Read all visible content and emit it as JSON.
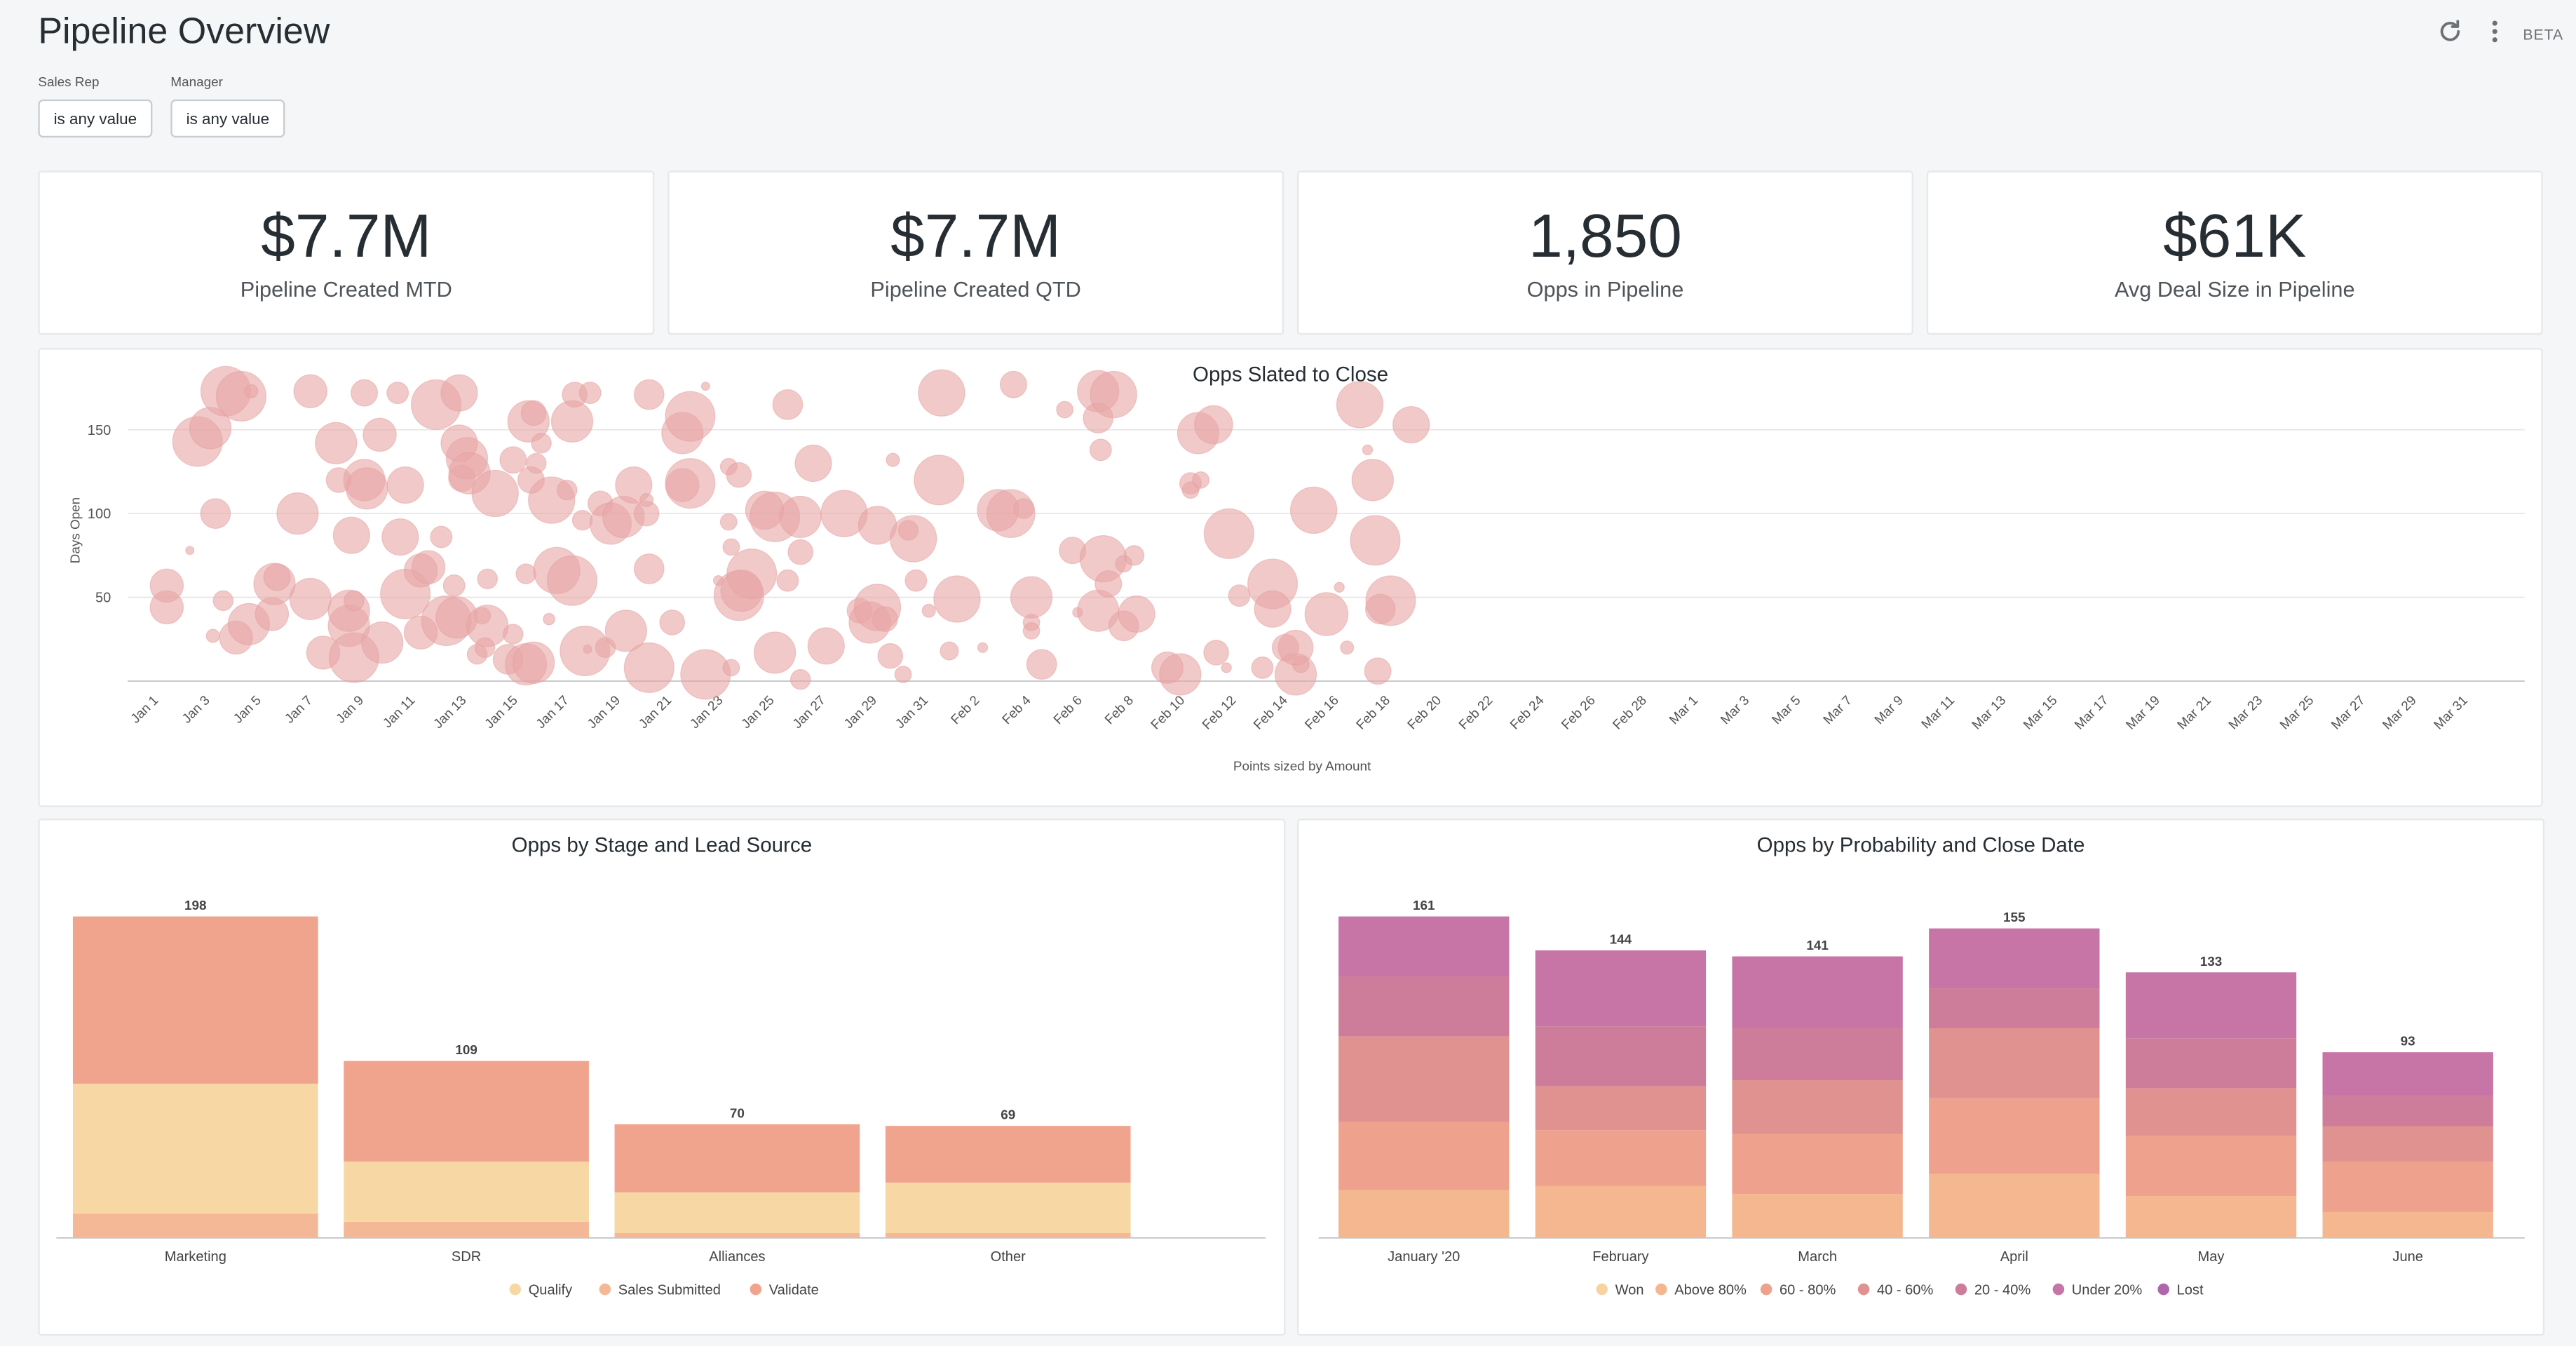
{
  "page": {
    "title": "Pipeline Overview",
    "beta": "BETA"
  },
  "filters": [
    {
      "label": "Sales Rep",
      "value": "is any value"
    },
    {
      "label": "Manager",
      "value": "is any value"
    }
  ],
  "kpis": [
    {
      "value": "$7.7M",
      "label": "Pipeline Created MTD"
    },
    {
      "value": "$7.7M",
      "label": "Pipeline Created QTD"
    },
    {
      "value": "1,850",
      "label": "Opps in Pipeline"
    },
    {
      "value": "$61K",
      "label": "Avg Deal Size in Pipeline"
    }
  ],
  "icons": {
    "refresh": "refresh-icon",
    "menu": "more-vertical-icon"
  },
  "chart_data": [
    {
      "type": "scatter",
      "title": "Opps Slated to Close",
      "ylabel": "Days Open",
      "xlabel": "Points sized by Amount",
      "yticks": [
        50,
        100,
        150
      ],
      "ylim": [
        0,
        180
      ],
      "color": "#e8a5a5",
      "x_ticks": [
        "Jan 1",
        "Jan 3",
        "Jan 5",
        "Jan 7",
        "Jan 9",
        "Jan 11",
        "Jan 13",
        "Jan 15",
        "Jan 17",
        "Jan 19",
        "Jan 21",
        "Jan 23",
        "Jan 25",
        "Jan 27",
        "Jan 29",
        "Jan 31",
        "Feb 2",
        "Feb 4",
        "Feb 6",
        "Feb 8",
        "Feb 10",
        "Feb 12",
        "Feb 14",
        "Feb 16",
        "Feb 18",
        "Feb 20",
        "Feb 22",
        "Feb 24",
        "Feb 26",
        "Feb 28",
        "Mar 1",
        "Mar 3",
        "Mar 5",
        "Mar 7",
        "Mar 9",
        "Mar 11",
        "Mar 13",
        "Mar 15",
        "Mar 17",
        "Mar 19",
        "Mar 21",
        "Mar 23",
        "Mar 25",
        "Mar 27",
        "Mar 29",
        "Mar 31"
      ],
      "points": [
        {
          "day": 0.3,
          "y": 57,
          "r": 2
        },
        {
          "day": 0.3,
          "y": 44,
          "r": 2
        },
        {
          "day": 1.2,
          "y": 78,
          "r": 0.5
        },
        {
          "day": 1.5,
          "y": 143,
          "r": 3
        },
        {
          "day": 2.0,
          "y": 151,
          "r": 2.5
        },
        {
          "day": 2.2,
          "y": 100,
          "r": 1.8
        },
        {
          "day": 2.1,
          "y": 27,
          "r": 0.8
        },
        {
          "day": 2.5,
          "y": 48,
          "r": 1.2
        },
        {
          "day": 2.6,
          "y": 173,
          "r": 3
        },
        {
          "day": 3.0,
          "y": 26,
          "r": 2
        },
        {
          "day": 3.2,
          "y": 170,
          "r": 3
        },
        {
          "day": 3.5,
          "y": 34,
          "r": 2.5
        },
        {
          "day": 3.6,
          "y": 173,
          "r": 0.8
        },
        {
          "day": 4.4,
          "y": 40,
          "r": 2
        },
        {
          "day": 4.5,
          "y": 58,
          "r": 2.5
        },
        {
          "day": 4.6,
          "y": 62,
          "r": 1.6
        },
        {
          "day": 5.4,
          "y": 100,
          "r": 2.5
        },
        {
          "day": 5.9,
          "y": 49,
          "r": 2.5
        },
        {
          "day": 5.9,
          "y": 173,
          "r": 2
        },
        {
          "day": 6.4,
          "y": 17,
          "r": 2
        },
        {
          "day": 6.9,
          "y": 142,
          "r": 2.5
        },
        {
          "day": 7.0,
          "y": 120,
          "r": 1.5
        },
        {
          "day": 7.4,
          "y": 33,
          "r": 2.5
        },
        {
          "day": 7.4,
          "y": 42,
          "r": 2.5
        },
        {
          "day": 7.5,
          "y": 87,
          "r": 2.2
        },
        {
          "day": 7.6,
          "y": 14,
          "r": 3
        },
        {
          "day": 7.6,
          "y": 48,
          "r": 1.2
        },
        {
          "day": 8.0,
          "y": 120,
          "r": 2.5
        },
        {
          "day": 8.0,
          "y": 172,
          "r": 1.6
        },
        {
          "day": 8.1,
          "y": 115,
          "r": 2.5
        },
        {
          "day": 8.6,
          "y": 147,
          "r": 2
        },
        {
          "day": 8.7,
          "y": 23,
          "r": 2.5
        },
        {
          "day": 9.3,
          "y": 172,
          "r": 1.3
        },
        {
          "day": 9.4,
          "y": 86,
          "r": 2.2
        },
        {
          "day": 9.6,
          "y": 117,
          "r": 2.2
        },
        {
          "day": 9.6,
          "y": 52,
          "r": 3
        },
        {
          "day": 10.2,
          "y": 29,
          "r": 2
        },
        {
          "day": 10.2,
          "y": 66,
          "r": 2
        },
        {
          "day": 10.5,
          "y": 68,
          "r": 2
        },
        {
          "day": 10.8,
          "y": 165,
          "r": 3
        },
        {
          "day": 11.0,
          "y": 86,
          "r": 1.3
        },
        {
          "day": 11.2,
          "y": 36,
          "r": 3
        },
        {
          "day": 11.5,
          "y": 57,
          "r": 1.3
        },
        {
          "day": 11.6,
          "y": 38,
          "r": 2.5
        },
        {
          "day": 11.7,
          "y": 142,
          "r": 2.2
        },
        {
          "day": 11.7,
          "y": 172,
          "r": 2.2
        },
        {
          "day": 11.8,
          "y": 121,
          "r": 1.6
        },
        {
          "day": 12.0,
          "y": 133,
          "r": 2.5
        },
        {
          "day": 12.1,
          "y": 124,
          "r": 2.5
        },
        {
          "day": 12.4,
          "y": 16,
          "r": 1.2
        },
        {
          "day": 12.6,
          "y": 39,
          "r": 1
        },
        {
          "day": 12.7,
          "y": 20,
          "r": 1.2
        },
        {
          "day": 12.8,
          "y": 33,
          "r": 2.5
        },
        {
          "day": 12.8,
          "y": 61,
          "r": 1.2
        },
        {
          "day": 13.1,
          "y": 112,
          "r": 2.8
        },
        {
          "day": 13.6,
          "y": 13,
          "r": 1.8
        },
        {
          "day": 13.8,
          "y": 28,
          "r": 1.2
        },
        {
          "day": 13.8,
          "y": 132,
          "r": 1.6
        },
        {
          "day": 14.3,
          "y": 10,
          "r": 2.5
        },
        {
          "day": 14.3,
          "y": 64,
          "r": 1.2
        },
        {
          "day": 14.4,
          "y": 155,
          "r": 2.5
        },
        {
          "day": 14.5,
          "y": 120,
          "r": 1.6
        },
        {
          "day": 14.6,
          "y": 11,
          "r": 2.5
        },
        {
          "day": 14.6,
          "y": 160,
          "r": 1.5
        },
        {
          "day": 14.7,
          "y": 130,
          "r": 1.2
        },
        {
          "day": 14.9,
          "y": 142,
          "r": 1.2
        },
        {
          "day": 15.2,
          "y": 37,
          "r": 0.7
        },
        {
          "day": 15.3,
          "y": 108,
          "r": 2.8
        },
        {
          "day": 15.5,
          "y": 66,
          "r": 2.8
        },
        {
          "day": 15.9,
          "y": 114,
          "r": 1.2
        },
        {
          "day": 16.1,
          "y": 155,
          "r": 2.5
        },
        {
          "day": 16.1,
          "y": 60,
          "r": 3
        },
        {
          "day": 16.2,
          "y": 171,
          "r": 1.5
        },
        {
          "day": 16.5,
          "y": 96,
          "r": 1.2
        },
        {
          "day": 16.6,
          "y": 18,
          "r": 3
        },
        {
          "day": 16.7,
          "y": 19,
          "r": 0.5
        },
        {
          "day": 16.8,
          "y": 172,
          "r": 1.3
        },
        {
          "day": 17.2,
          "y": 106,
          "r": 1.5
        },
        {
          "day": 17.4,
          "y": 20,
          "r": 1.2
        },
        {
          "day": 17.6,
          "y": 94,
          "r": 2.5
        },
        {
          "day": 18.1,
          "y": 98,
          "r": 2.5
        },
        {
          "day": 18.2,
          "y": 30,
          "r": 2.5
        },
        {
          "day": 18.5,
          "y": 117,
          "r": 2.2
        },
        {
          "day": 19.0,
          "y": 100,
          "r": 1.5
        },
        {
          "day": 19.0,
          "y": 108,
          "r": 0.8
        },
        {
          "day": 19.1,
          "y": 67,
          "r": 1.8
        },
        {
          "day": 19.1,
          "y": 171,
          "r": 1.8
        },
        {
          "day": 19.1,
          "y": 8,
          "r": 3
        },
        {
          "day": 20.0,
          "y": 35,
          "r": 1.5
        },
        {
          "day": 20.4,
          "y": 148,
          "r": 2.5
        },
        {
          "day": 20.4,
          "y": 117,
          "r": 2
        },
        {
          "day": 20.7,
          "y": 118,
          "r": 3
        },
        {
          "day": 20.7,
          "y": 158,
          "r": 3
        },
        {
          "day": 21.3,
          "y": 4,
          "r": 3
        },
        {
          "day": 21.3,
          "y": 176,
          "r": 0.5
        },
        {
          "day": 21.8,
          "y": 60,
          "r": 0.6
        },
        {
          "day": 22.2,
          "y": 128,
          "r": 1
        },
        {
          "day": 22.2,
          "y": 95,
          "r": 1
        },
        {
          "day": 22.3,
          "y": 80,
          "r": 1
        },
        {
          "day": 22.3,
          "y": 8,
          "r": 1
        },
        {
          "day": 22.6,
          "y": 123,
          "r": 1.5
        },
        {
          "day": 22.6,
          "y": 51,
          "r": 3
        },
        {
          "day": 22.7,
          "y": 54,
          "r": 2.5
        },
        {
          "day": 23.1,
          "y": 64,
          "r": 3
        },
        {
          "day": 23.6,
          "y": 102,
          "r": 2.3
        },
        {
          "day": 24.0,
          "y": 17,
          "r": 2.5
        },
        {
          "day": 24.0,
          "y": 98,
          "r": 3
        },
        {
          "day": 24.5,
          "y": 60,
          "r": 1.3
        },
        {
          "day": 24.5,
          "y": 165,
          "r": 1.8
        },
        {
          "day": 25.0,
          "y": 98,
          "r": 2.5
        },
        {
          "day": 25.0,
          "y": 77,
          "r": 1.5
        },
        {
          "day": 25.0,
          "y": 1,
          "r": 1.2
        },
        {
          "day": 25.5,
          "y": 130,
          "r": 2.2
        },
        {
          "day": 26.0,
          "y": 21,
          "r": 2.2
        },
        {
          "day": 26.7,
          "y": 100,
          "r": 2.8
        },
        {
          "day": 27.3,
          "y": 42,
          "r": 1.5
        },
        {
          "day": 27.7,
          "y": 35,
          "r": 2.5
        },
        {
          "day": 28.0,
          "y": 44,
          "r": 2.8
        },
        {
          "day": 28.0,
          "y": 93,
          "r": 2.3
        },
        {
          "day": 28.3,
          "y": 37,
          "r": 1.5
        },
        {
          "day": 28.5,
          "y": 15,
          "r": 1.5
        },
        {
          "day": 28.6,
          "y": 132,
          "r": 0.8
        },
        {
          "day": 29.0,
          "y": 4,
          "r": 1
        },
        {
          "day": 29.2,
          "y": 90,
          "r": 1.2
        },
        {
          "day": 29.4,
          "y": 85,
          "r": 2.8
        },
        {
          "day": 29.5,
          "y": 60,
          "r": 1.3
        },
        {
          "day": 30.0,
          "y": 42,
          "r": 0.8
        },
        {
          "day": 30.4,
          "y": 120,
          "r": 3
        },
        {
          "day": 30.5,
          "y": 172,
          "r": 2.8
        },
        {
          "day": 30.8,
          "y": 18,
          "r": 1.1
        },
        {
          "day": 31.1,
          "y": 49,
          "r": 2.8
        },
        {
          "day": 32.1,
          "y": 20,
          "r": 0.6
        },
        {
          "day": 32.7,
          "y": 102,
          "r": 2.5
        },
        {
          "day": 33.2,
          "y": 100,
          "r": 2.9
        },
        {
          "day": 33.3,
          "y": 177,
          "r": 1.6
        },
        {
          "day": 33.7,
          "y": 103,
          "r": 1.2
        },
        {
          "day": 34.0,
          "y": 35,
          "r": 1
        },
        {
          "day": 34.0,
          "y": 30,
          "r": 1
        },
        {
          "day": 34.0,
          "y": 50,
          "r": 2.5
        },
        {
          "day": 34.4,
          "y": 10,
          "r": 1.8
        },
        {
          "day": 35.3,
          "y": 162,
          "r": 1
        },
        {
          "day": 35.6,
          "y": 78,
          "r": 1.6
        },
        {
          "day": 35.8,
          "y": 41,
          "r": 0.6
        },
        {
          "day": 36.6,
          "y": 173,
          "r": 2.5
        },
        {
          "day": 36.6,
          "y": 157,
          "r": 1.8
        },
        {
          "day": 36.7,
          "y": 138,
          "r": 1.3
        },
        {
          "day": 36.8,
          "y": 73,
          "r": 2.8
        },
        {
          "day": 36.6,
          "y": 42,
          "r": 2.5
        },
        {
          "day": 37.0,
          "y": 58,
          "r": 1.6
        },
        {
          "day": 37.2,
          "y": 171,
          "r": 2.8
        },
        {
          "day": 37.6,
          "y": 33,
          "r": 1.8
        },
        {
          "day": 37.6,
          "y": 70,
          "r": 1
        },
        {
          "day": 38.0,
          "y": 75,
          "r": 1.2
        },
        {
          "day": 38.1,
          "y": 40,
          "r": 2.2
        },
        {
          "day": 39.3,
          "y": 8,
          "r": 1.9
        },
        {
          "day": 39.8,
          "y": 4,
          "r": 2.5
        },
        {
          "day": 40.2,
          "y": 118,
          "r": 1.3
        },
        {
          "day": 40.2,
          "y": 114,
          "r": 1
        },
        {
          "day": 40.5,
          "y": 148,
          "r": 2.5
        },
        {
          "day": 40.6,
          "y": 120,
          "r": 1
        },
        {
          "day": 41.1,
          "y": 153,
          "r": 2.3
        },
        {
          "day": 41.2,
          "y": 17,
          "r": 1.5
        },
        {
          "day": 41.6,
          "y": 8,
          "r": 0.6
        },
        {
          "day": 41.7,
          "y": 88,
          "r": 3
        },
        {
          "day": 42.1,
          "y": 51,
          "r": 1.3
        },
        {
          "day": 43.0,
          "y": 8,
          "r": 1.3
        },
        {
          "day": 43.4,
          "y": 58,
          "r": 3
        },
        {
          "day": 43.4,
          "y": 43,
          "r": 2.2
        },
        {
          "day": 43.9,
          "y": 20,
          "r": 1.6
        },
        {
          "day": 44.3,
          "y": 4,
          "r": 2.5
        },
        {
          "day": 44.5,
          "y": 10,
          "r": 1
        },
        {
          "day": 44.3,
          "y": 20,
          "r": 2.1
        },
        {
          "day": 45.0,
          "y": 102,
          "r": 2.8
        },
        {
          "day": 45.5,
          "y": 40,
          "r": 2.6
        },
        {
          "day": 46.0,
          "y": 56,
          "r": 0.6
        },
        {
          "day": 46.3,
          "y": 20,
          "r": 0.8
        },
        {
          "day": 46.8,
          "y": 165,
          "r": 2.8
        },
        {
          "day": 47.1,
          "y": 138,
          "r": 0.6
        },
        {
          "day": 47.3,
          "y": 120,
          "r": 2.5
        },
        {
          "day": 47.4,
          "y": 84,
          "r": 3
        },
        {
          "day": 47.5,
          "y": 6,
          "r": 1.6
        },
        {
          "day": 47.6,
          "y": 43,
          "r": 1.8
        },
        {
          "day": 48.0,
          "y": 48,
          "r": 3
        },
        {
          "day": 48.8,
          "y": 153,
          "r": 2.2
        }
      ]
    },
    {
      "type": "bar",
      "title": "Opps by Stage and Lead Source",
      "categories": [
        "Marketing",
        "SDR",
        "Alliances",
        "Other"
      ],
      "totals": [
        198,
        109,
        70,
        69
      ],
      "series": [
        {
          "name": "Qualify",
          "color": "#f7d8a4",
          "values": [
            80,
            37,
            25,
            31
          ]
        },
        {
          "name": "Sales Submitted",
          "color": "#f4b896",
          "values": [
            15,
            10,
            3,
            3
          ]
        },
        {
          "name": "Validate",
          "color": "#f0a48e",
          "values": [
            103,
            62,
            42,
            35
          ]
        }
      ],
      "series_order_bottom_up": [
        "Sales Submitted",
        "Qualify",
        "Validate"
      ],
      "ylim": [
        0,
        198
      ]
    },
    {
      "type": "bar",
      "title": "Opps by Probability and Close Date",
      "categories": [
        "January '20",
        "February",
        "March",
        "April",
        "May",
        "June"
      ],
      "totals": [
        161,
        144,
        141,
        155,
        133,
        93
      ],
      "series": [
        {
          "name": "Won",
          "color": "#f8d3a2",
          "values": [
            0,
            0,
            0,
            0,
            0,
            0
          ]
        },
        {
          "name": "Above 80%",
          "color": "#f4b790",
          "values": [
            24,
            26,
            22,
            32,
            21,
            13
          ]
        },
        {
          "name": "60 - 80%",
          "color": "#eea18c",
          "values": [
            34,
            28,
            30,
            38,
            30,
            25
          ]
        },
        {
          "name": "40 - 60%",
          "color": "#e09290",
          "values": [
            43,
            22,
            27,
            35,
            24,
            18
          ]
        },
        {
          "name": "20 - 40%",
          "color": "#cd7d9a",
          "values": [
            30,
            30,
            26,
            20,
            25,
            15
          ]
        },
        {
          "name": "Under 20%",
          "color": "#c774a6",
          "values": [
            30,
            38,
            36,
            30,
            33,
            22
          ]
        },
        {
          "name": "Lost",
          "color": "#b066ad",
          "values": [
            0,
            0,
            0,
            0,
            0,
            0
          ]
        }
      ],
      "ylim": [
        0,
        161
      ]
    }
  ]
}
